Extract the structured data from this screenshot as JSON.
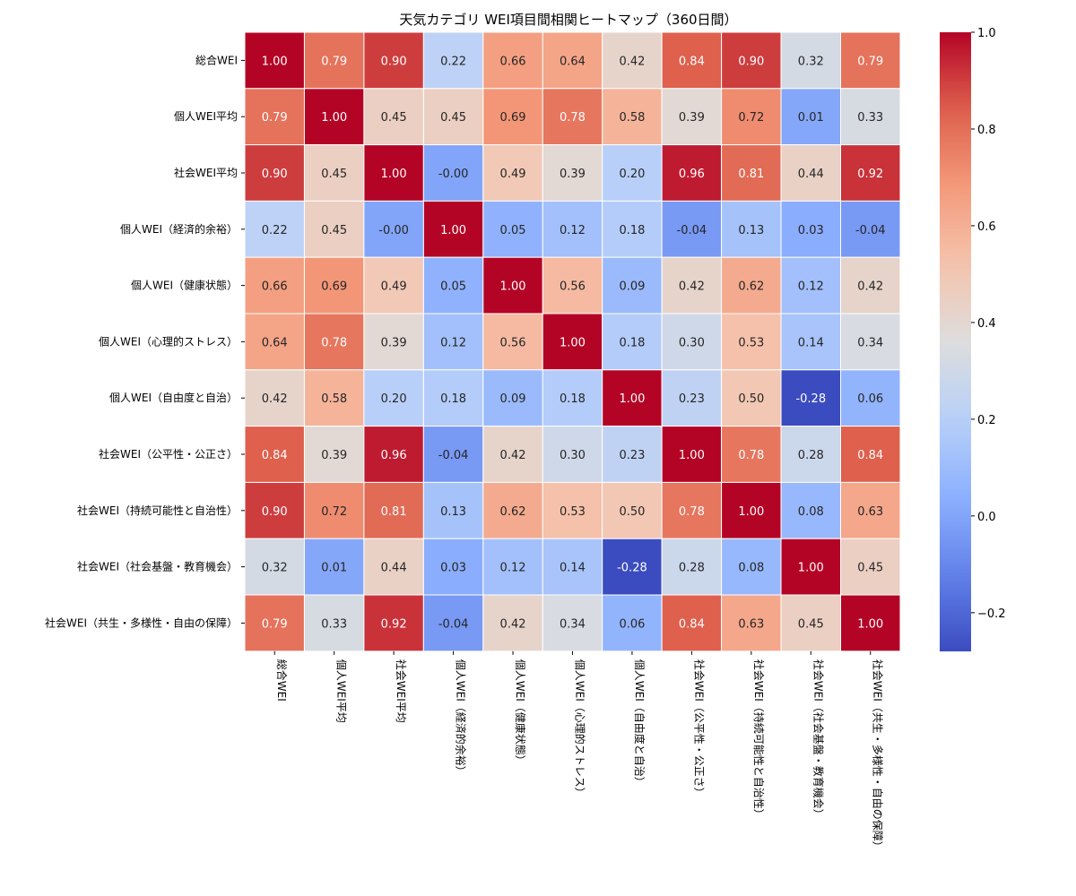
{
  "chart_data": {
    "type": "heatmap",
    "title": "天気カテゴリ WEI項目間相関ヒートマップ（360日間）",
    "labels": [
      "総合WEI",
      "個人WEI平均",
      "社会WEI平均",
      "個人WEI（経済的余裕）",
      "個人WEI（健康状態）",
      "個人WEI（心理的ストレス）",
      "個人WEI（自由度と自治）",
      "社会WEI（公平性・公正さ）",
      "社会WEI（持続可能性と自治性）",
      "社会WEI（社会基盤・教育機会）",
      "社会WEI（共生・多様性・自由の保障）"
    ],
    "matrix": [
      [
        "1.00",
        "0.79",
        "0.90",
        "0.22",
        "0.66",
        "0.64",
        "0.42",
        "0.84",
        "0.90",
        "0.32",
        "0.79"
      ],
      [
        "0.79",
        "1.00",
        "0.45",
        "0.45",
        "0.69",
        "0.78",
        "0.58",
        "0.39",
        "0.72",
        "0.01",
        "0.33"
      ],
      [
        "0.90",
        "0.45",
        "1.00",
        "-0.00",
        "0.49",
        "0.39",
        "0.20",
        "0.96",
        "0.81",
        "0.44",
        "0.92"
      ],
      [
        "0.22",
        "0.45",
        "-0.00",
        "1.00",
        "0.05",
        "0.12",
        "0.18",
        "-0.04",
        "0.13",
        "0.03",
        "-0.04"
      ],
      [
        "0.66",
        "0.69",
        "0.49",
        "0.05",
        "1.00",
        "0.56",
        "0.09",
        "0.42",
        "0.62",
        "0.12",
        "0.42"
      ],
      [
        "0.64",
        "0.78",
        "0.39",
        "0.12",
        "0.56",
        "1.00",
        "0.18",
        "0.30",
        "0.53",
        "0.14",
        "0.34"
      ],
      [
        "0.42",
        "0.58",
        "0.20",
        "0.18",
        "0.09",
        "0.18",
        "1.00",
        "0.23",
        "0.50",
        "-0.28",
        "0.06"
      ],
      [
        "0.84",
        "0.39",
        "0.96",
        "-0.04",
        "0.42",
        "0.30",
        "0.23",
        "1.00",
        "0.78",
        "0.28",
        "0.84"
      ],
      [
        "0.90",
        "0.72",
        "0.81",
        "0.13",
        "0.62",
        "0.53",
        "0.50",
        "0.78",
        "1.00",
        "0.08",
        "0.63"
      ],
      [
        "0.32",
        "0.01",
        "0.44",
        "0.03",
        "0.12",
        "0.14",
        "-0.28",
        "0.28",
        "0.08",
        "1.00",
        "0.45"
      ],
      [
        "0.79",
        "0.33",
        "0.92",
        "-0.04",
        "0.42",
        "0.34",
        "0.06",
        "0.84",
        "0.63",
        "0.45",
        "1.00"
      ]
    ],
    "colormap": "coolwarm",
    "vmin": -0.28,
    "vmax": 1.0,
    "colorbar_ticks": [
      "1.0",
      "0.8",
      "0.6",
      "0.4",
      "0.2",
      "0.0",
      "−0.2"
    ]
  }
}
